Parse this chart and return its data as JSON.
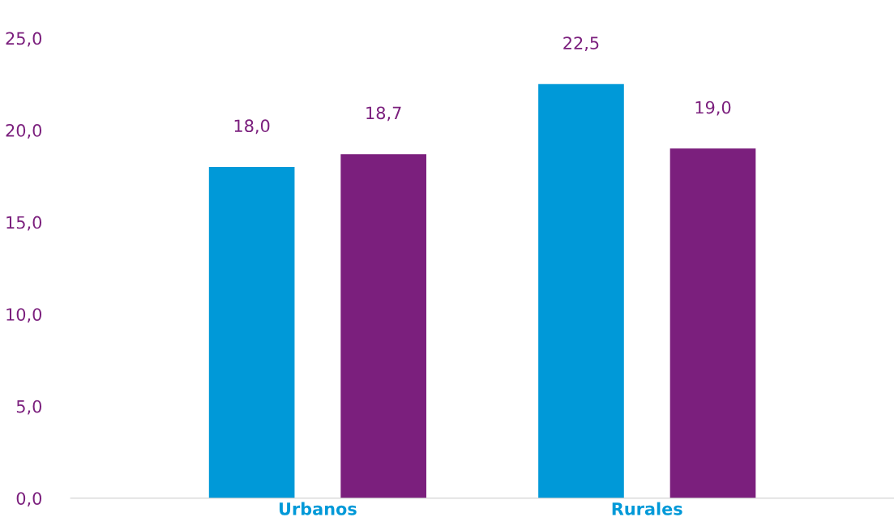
{
  "chart_data": {
    "type": "bar",
    "categories": [
      "Urbanos",
      "Rurales"
    ],
    "series": [
      {
        "color": "#0099d8",
        "values": [
          18.0,
          22.5
        ],
        "value_labels": [
          "18,0",
          "22,5"
        ]
      },
      {
        "color": "#7b1f7d",
        "values": [
          18.7,
          19.0
        ],
        "value_labels": [
          "18,7",
          "19,0"
        ]
      }
    ],
    "ylim": [
      0,
      25
    ],
    "yticks": [
      {
        "value": 0,
        "label": "0,0"
      },
      {
        "value": 5,
        "label": "5,0"
      },
      {
        "value": 10,
        "label": "10,0"
      },
      {
        "value": 15,
        "label": "15,0"
      },
      {
        "value": 20,
        "label": "20,0"
      },
      {
        "value": 25,
        "label": "25,0"
      }
    ],
    "grid": false,
    "legend": false
  }
}
